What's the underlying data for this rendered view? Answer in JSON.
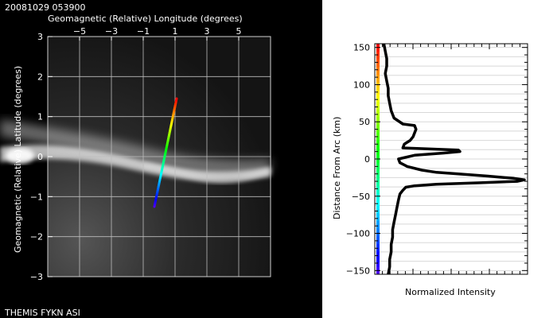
{
  "image_panel": {
    "timestamp": "20081029 053900",
    "footer": "THEMIS FYKN ASI",
    "xlabel": "Geomagnetic (Relative) Longitude (degrees)",
    "ylabel": "Geomagnetic (Relative) Latitude (degrees)",
    "xticks": [
      "−5",
      "−3",
      "−1",
      "1",
      "3",
      "5"
    ],
    "yticks": [
      "3",
      "2",
      "1",
      "0",
      "−1",
      "−2",
      "−3"
    ]
  },
  "profile_panel": {
    "ylabel": "Distance From Arc (km)",
    "xlabel": "Normalized Intensity",
    "yticks": [
      "150",
      "100",
      "50",
      "0",
      "−50",
      "−100",
      "−150"
    ]
  },
  "chart_data": [
    {
      "type": "scatter",
      "xlabel": "Geomagnetic (Relative) Longitude (degrees)",
      "ylabel": "Geomagnetic (Relative) Latitude (degrees)",
      "xlim": [
        -7,
        7
      ],
      "ylim": [
        -3,
        3
      ],
      "grid": true,
      "series": [
        {
          "colormap": "rainbow",
          "points": [
            [
              -0.3,
              -1.25
            ],
            [
              1.1,
              1.45
            ]
          ]
        }
      ]
    },
    {
      "type": "line",
      "xlabel": "Normalized Intensity",
      "ylabel": "Distance From Arc (km)",
      "ylim": [
        -155,
        155
      ],
      "xlim": [
        0,
        1
      ],
      "grid": true,
      "colorbar": {
        "colormap": "rainbow",
        "range": [
          -155,
          155
        ]
      },
      "series": [
        {
          "color": "#000000",
          "y": [
            155,
            145,
            135,
            125,
            115,
            105,
            95,
            85,
            75,
            65,
            55,
            47,
            45,
            40,
            35,
            30,
            25,
            20,
            15,
            12,
            10,
            8,
            5,
            0,
            -5,
            -10,
            -15,
            -18,
            -20,
            -23,
            -26,
            -28,
            -30,
            -32,
            -34,
            -36,
            -38,
            -42,
            -47,
            -55,
            -65,
            -75,
            -85,
            -95,
            -105,
            -115,
            -125,
            -135,
            -145,
            -155
          ],
          "x": [
            0.04,
            0.05,
            0.06,
            0.06,
            0.05,
            0.06,
            0.07,
            0.07,
            0.08,
            0.09,
            0.11,
            0.17,
            0.25,
            0.26,
            0.25,
            0.24,
            0.22,
            0.18,
            0.17,
            0.55,
            0.56,
            0.45,
            0.25,
            0.14,
            0.15,
            0.2,
            0.3,
            0.4,
            0.55,
            0.75,
            0.93,
            1.0,
            0.95,
            0.7,
            0.4,
            0.25,
            0.19,
            0.17,
            0.15,
            0.14,
            0.13,
            0.12,
            0.11,
            0.1,
            0.1,
            0.09,
            0.09,
            0.08,
            0.08,
            0.07
          ]
        }
      ]
    }
  ]
}
